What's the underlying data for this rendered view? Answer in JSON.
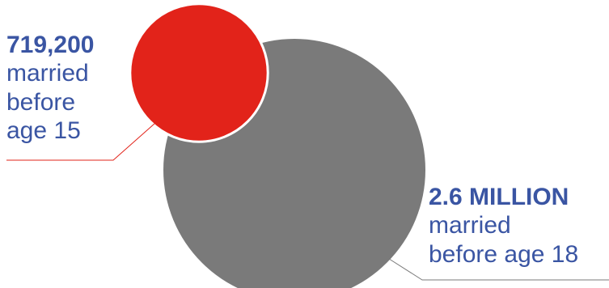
{
  "chart_data": {
    "type": "bubble",
    "series": [
      {
        "value": 2600000,
        "value_label": "2.6 MILLION",
        "description": "married before age 18",
        "color": "#7a7a7a"
      },
      {
        "value": 719200,
        "value_label": "719,200",
        "description": "married before age 15",
        "color": "#e2231a"
      }
    ]
  },
  "labels": {
    "red_value": "719,200",
    "red_line1": "married",
    "red_line2": "before",
    "red_line3": "age 15",
    "grey_value": "2.6 MILLION",
    "grey_line1": "married",
    "grey_line2": "before age 18"
  },
  "colors": {
    "accent_text": "#3a55a3",
    "leader_red": "#e2231a",
    "leader_grey": "#7a7a7a"
  }
}
